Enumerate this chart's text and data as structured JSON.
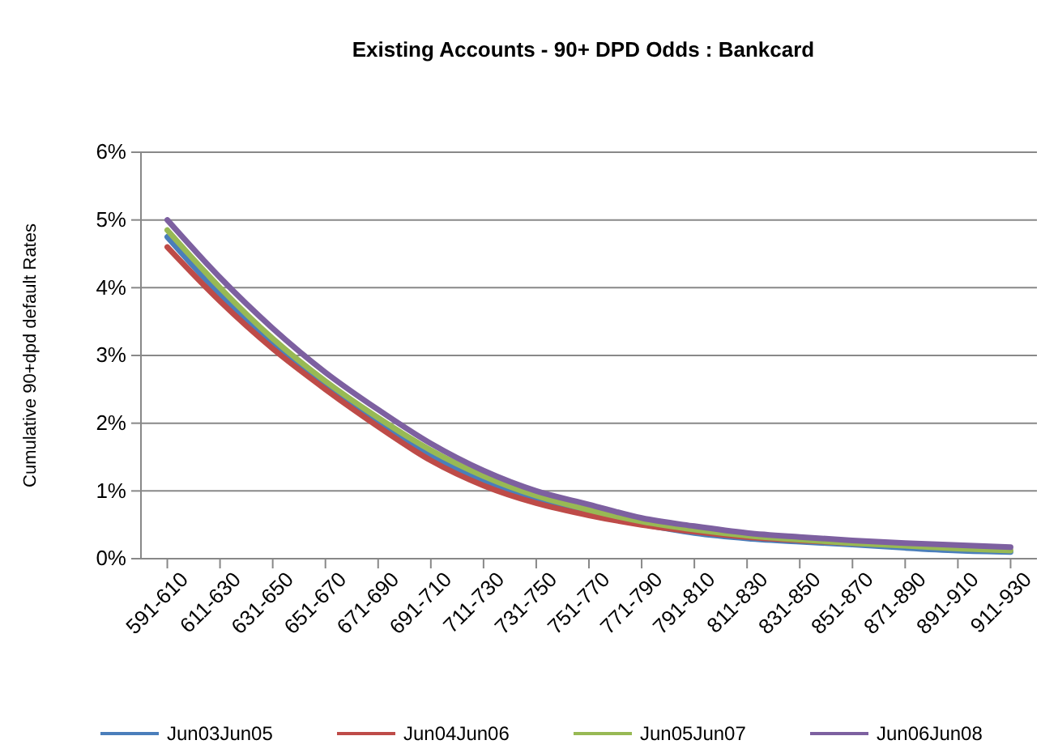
{
  "chart_data": {
    "type": "line",
    "title": "Existing Accounts - 90+ DPD Odds : Bankcard",
    "ylabel": "Cumulative 90+dpd default Rates",
    "categories": [
      "591-610",
      "611-630",
      "631-650",
      "651-670",
      "671-690",
      "691-710",
      "711-730",
      "731-750",
      "751-770",
      "771-790",
      "791-810",
      "811-830",
      "831-850",
      "851-870",
      "871-890",
      "891-910",
      "911-930"
    ],
    "series": [
      {
        "name": "Jun03Jun05",
        "color": "#4a7ebb",
        "values": [
          4.75,
          3.9,
          3.18,
          2.56,
          2.0,
          1.52,
          1.15,
          0.87,
          0.67,
          0.51,
          0.38,
          0.3,
          0.25,
          0.21,
          0.16,
          0.12,
          0.1
        ]
      },
      {
        "name": "Jun04Jun06",
        "color": "#be4b48",
        "values": [
          4.6,
          3.8,
          3.1,
          2.5,
          1.95,
          1.45,
          1.08,
          0.82,
          0.64,
          0.5,
          0.4,
          0.32,
          0.27,
          0.23,
          0.2,
          null,
          null
        ]
      },
      {
        "name": "Jun05Jun07",
        "color": "#98b954",
        "values": [
          4.85,
          4.0,
          3.25,
          2.62,
          2.08,
          1.6,
          1.22,
          0.93,
          0.72,
          0.55,
          0.43,
          0.34,
          0.28,
          0.23,
          0.19,
          0.15,
          0.12
        ]
      },
      {
        "name": "Jun06Jun08",
        "color": "#7d60a0",
        "values": [
          5.0,
          4.15,
          3.4,
          2.75,
          2.2,
          1.7,
          1.3,
          1.0,
          0.8,
          0.6,
          0.48,
          0.38,
          0.32,
          0.27,
          0.23,
          0.2,
          0.17
        ]
      }
    ],
    "ylim": [
      0,
      6
    ],
    "yticks": [
      {
        "value": 0,
        "label": "0%"
      },
      {
        "value": 1,
        "label": "1%"
      },
      {
        "value": 2,
        "label": "2%"
      },
      {
        "value": 3,
        "label": "3%"
      },
      {
        "value": 4,
        "label": "4%"
      },
      {
        "value": 5,
        "label": "5%"
      },
      {
        "value": 6,
        "label": "6%"
      }
    ],
    "grid": "y",
    "legend": "bottom",
    "marker": "none",
    "line_style": "solid"
  }
}
